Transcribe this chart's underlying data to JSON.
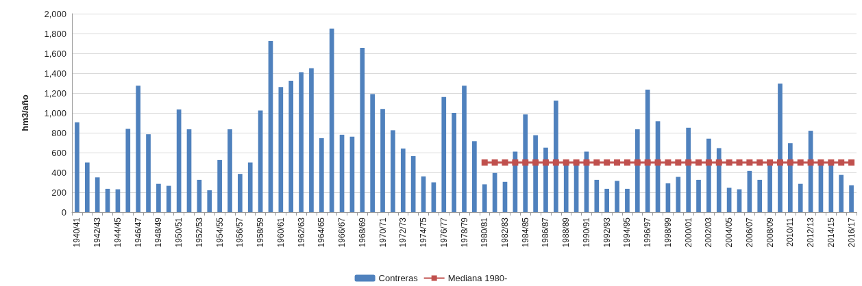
{
  "chart_data": {
    "type": "bar",
    "ylabel": "hm3/año",
    "categories": [
      "1940/41",
      null,
      "1942/43",
      null,
      "1944/45",
      null,
      "1946/47",
      null,
      "1948/49",
      null,
      "1950/51",
      null,
      "1952/53",
      null,
      "1954/55",
      null,
      "1956/57",
      null,
      "1958/59",
      null,
      "1960/61",
      null,
      "1962/63",
      null,
      "1964/65",
      null,
      "1966/67",
      null,
      "1968/69",
      null,
      "1970/71",
      null,
      "1972/73",
      null,
      "1974/75",
      null,
      "1976/77",
      null,
      "1978/79",
      null,
      "1980/81",
      null,
      "1982/83",
      null,
      "1984/85",
      null,
      "1986/87",
      null,
      "1988/89",
      null,
      "1990/91",
      null,
      "1992/93",
      null,
      "1994/95",
      null,
      "1996/97",
      null,
      "1998/99",
      null,
      "2000/01",
      null,
      "2002/03",
      null,
      "2004/05",
      null,
      "2006/07",
      null,
      "2008/09",
      null,
      "2010/11",
      null,
      "2012/13",
      null,
      "2014/15",
      null,
      "2016/17"
    ],
    "series": [
      {
        "name": "Contreras",
        "color": "#4f81bd",
        "values": [
          905,
          500,
          350,
          235,
          230,
          840,
          1275,
          785,
          285,
          265,
          1035,
          835,
          325,
          220,
          525,
          835,
          385,
          500,
          1025,
          1725,
          1260,
          1325,
          1410,
          1450,
          745,
          1850,
          780,
          760,
          1655,
          1190,
          1040,
          825,
          640,
          565,
          360,
          300,
          1160,
          1000,
          1275,
          715,
          280,
          395,
          305,
          610,
          985,
          775,
          650,
          1125,
          490,
          490,
          610,
          325,
          235,
          315,
          235,
          835,
          1235,
          915,
          290,
          355,
          850,
          325,
          740,
          645,
          245,
          230,
          415,
          325,
          490,
          1295,
          695,
          285,
          820,
          490,
          490,
          375,
          270
        ]
      },
      {
        "name": "Mediana 1980-",
        "type": "line",
        "color": "#c0504d",
        "marker": "square",
        "values": [
          null,
          null,
          null,
          null,
          null,
          null,
          null,
          null,
          null,
          null,
          null,
          null,
          null,
          null,
          null,
          null,
          null,
          null,
          null,
          null,
          null,
          null,
          null,
          null,
          null,
          null,
          null,
          null,
          null,
          null,
          null,
          null,
          null,
          null,
          null,
          null,
          null,
          null,
          null,
          null,
          500,
          500,
          500,
          500,
          500,
          500,
          500,
          500,
          500,
          500,
          500,
          500,
          500,
          500,
          500,
          500,
          500,
          500,
          500,
          500,
          500,
          500,
          500,
          500,
          500,
          500,
          500,
          500,
          500,
          500,
          500,
          500,
          500,
          500,
          500,
          500,
          500
        ]
      }
    ],
    "ylim": [
      0,
      2000
    ],
    "yticks": [
      0,
      200,
      400,
      600,
      800,
      {
        "value": 1000,
        "label": "1,000"
      },
      {
        "value": 1200,
        "label": "1,200"
      },
      {
        "value": 1400,
        "label": "1,400"
      },
      {
        "value": 1600,
        "label": "1,600"
      },
      {
        "value": 1800,
        "label": "1,800"
      },
      {
        "value": 2000,
        "label": "2,000"
      }
    ],
    "grid": "y",
    "legend": "bottom"
  }
}
